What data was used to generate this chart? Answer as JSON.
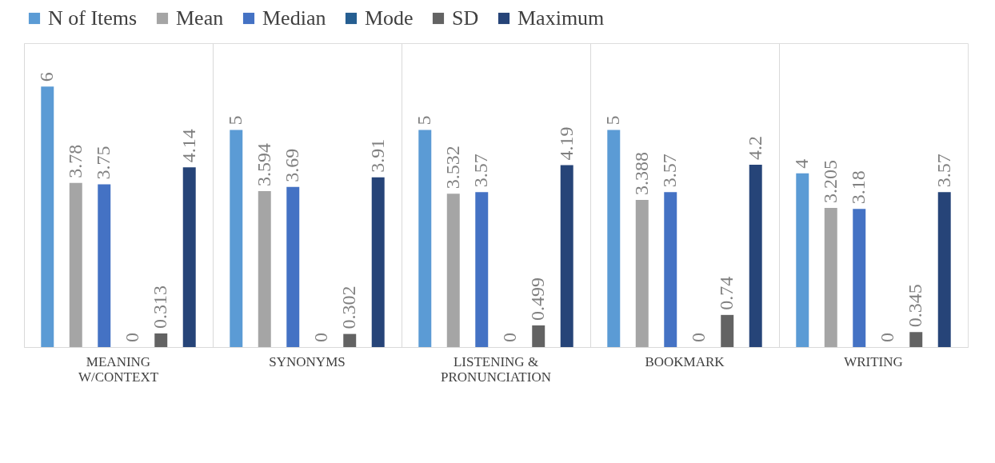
{
  "chart_data": {
    "type": "bar",
    "categories": [
      "MEANING W/CONTEXT",
      "SYNONYMS",
      "LISTENING & PRONUNCIATION",
      "BOOKMARK",
      "WRITING"
    ],
    "series": [
      {
        "name": "N of Items",
        "color": "#5b9bd5",
        "values": [
          6,
          5,
          5,
          5,
          4
        ]
      },
      {
        "name": "Mean",
        "color": "#a5a5a5",
        "values": [
          3.78,
          3.594,
          3.532,
          3.388,
          3.205
        ]
      },
      {
        "name": "Median",
        "color": "#4472c4",
        "values": [
          3.75,
          3.69,
          3.57,
          3.57,
          3.18
        ]
      },
      {
        "name": "Mode",
        "color": "#255e91",
        "values": [
          0,
          0,
          0,
          0,
          0
        ]
      },
      {
        "name": "SD",
        "color": "#636363",
        "values": [
          0.313,
          0.302,
          0.499,
          0.74,
          0.345
        ]
      },
      {
        "name": "Maximum",
        "color": "#264478",
        "values": [
          4.14,
          3.91,
          4.19,
          4.2,
          3.57
        ]
      }
    ],
    "ylim": [
      0,
      7
    ],
    "data_labels": true,
    "grid": "x",
    "legend": "top",
    "tick_labels": "x"
  }
}
